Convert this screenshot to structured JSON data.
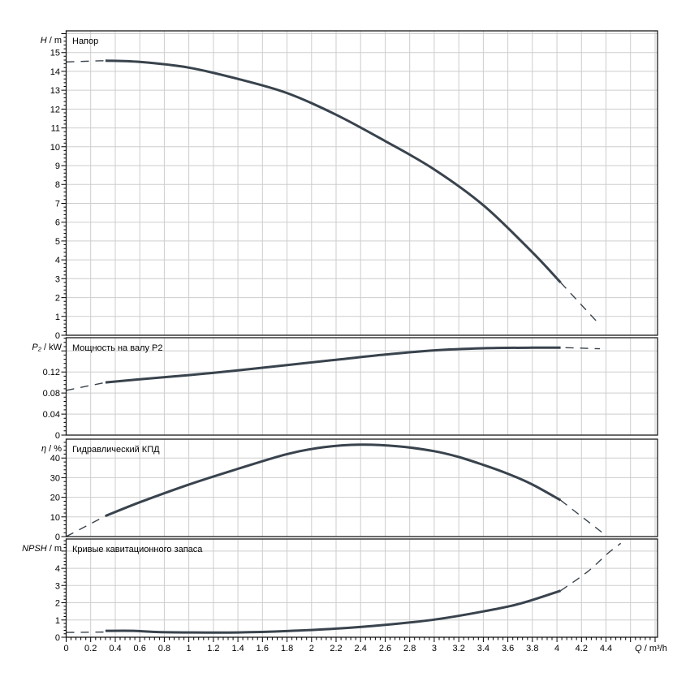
{
  "figure": {
    "background": "#ffffff",
    "curve_color": "#39434d",
    "grid_color": "#cdcdcd",
    "frame_color": "#1a1a1a",
    "text_color": "#000000"
  },
  "x_axis": {
    "label": "Q / m³/h",
    "min": 0,
    "max": 4.82,
    "major_step": 0.2,
    "minor_step": 0.04,
    "tick_labels": [
      "0",
      "0.2",
      "0.4",
      "0.6",
      "0.8",
      "1",
      "1.2",
      "1.4",
      "1.6",
      "1.8",
      "2",
      "2.2",
      "2.4",
      "2.6",
      "2.8",
      "3",
      "3.2",
      "3.4",
      "3.6",
      "3.8",
      "4",
      "4.2",
      "4.4"
    ]
  },
  "chart_data": [
    {
      "type": "line",
      "id": "head",
      "title": "Напор",
      "ylabel": "H / m",
      "ylim": [
        0,
        16.15
      ],
      "ymajor_step": 1,
      "yminor_step": 0.2,
      "ytick_labels": [
        "0",
        "1",
        "2",
        "3",
        "4",
        "5",
        "6",
        "7",
        "8",
        "9",
        "10",
        "11",
        "12",
        "13",
        "14",
        "15"
      ],
      "series": [
        {
          "name": "head-extrapolation-left",
          "style": "dashed",
          "points": [
            [
              0,
              14.5
            ],
            [
              0.32,
              14.57
            ]
          ]
        },
        {
          "name": "head-curve",
          "style": "solid",
          "points": [
            [
              0.32,
              14.57
            ],
            [
              0.6,
              14.5
            ],
            [
              1,
              14.2
            ],
            [
              1.4,
              13.6
            ],
            [
              1.8,
              12.85
            ],
            [
              2.2,
              11.7
            ],
            [
              2.6,
              10.3
            ],
            [
              3,
              8.8
            ],
            [
              3.4,
              6.9
            ],
            [
              3.8,
              4.4
            ],
            [
              4.03,
              2.8
            ]
          ]
        },
        {
          "name": "head-extrapolation-right",
          "style": "dashed",
          "points": [
            [
              4.03,
              2.8
            ],
            [
              4.35,
              0.55
            ]
          ]
        }
      ]
    },
    {
      "type": "line",
      "id": "power",
      "title": "Мощность на валу P2",
      "ylabel": "P₂ / kW",
      "ylim": [
        0,
        0.185
      ],
      "ymajor_step": 0.04,
      "yminor_step": 0.008,
      "ytick_labels": [
        "0",
        "0.04",
        "0.08",
        "0.12"
      ],
      "series": [
        {
          "name": "power-extrapolation-left",
          "style": "dashed",
          "points": [
            [
              0,
              0.085
            ],
            [
              0.32,
              0.1
            ]
          ]
        },
        {
          "name": "power-curve",
          "style": "solid",
          "points": [
            [
              0.32,
              0.1
            ],
            [
              0.6,
              0.106
            ],
            [
              1,
              0.114
            ],
            [
              1.4,
              0.123
            ],
            [
              1.8,
              0.133
            ],
            [
              2.2,
              0.143
            ],
            [
              2.6,
              0.153
            ],
            [
              3,
              0.161
            ],
            [
              3.4,
              0.165
            ],
            [
              3.8,
              0.166
            ],
            [
              4.03,
              0.166
            ]
          ]
        },
        {
          "name": "power-extrapolation-right",
          "style": "dashed",
          "points": [
            [
              4.07,
              0.166
            ],
            [
              4.35,
              0.164
            ]
          ]
        }
      ]
    },
    {
      "type": "line",
      "id": "efficiency",
      "title": "Гидравлический КПД",
      "ylabel": "η / %",
      "ylim": [
        0,
        49.6
      ],
      "ymajor_step": 10,
      "yminor_step": 2,
      "ytick_labels": [
        "0",
        "10",
        "20",
        "30",
        "40"
      ],
      "series": [
        {
          "name": "efficiency-extrapolation-left",
          "style": "dashed",
          "points": [
            [
              0,
              0
            ],
            [
              0.32,
              10.5
            ]
          ]
        },
        {
          "name": "efficiency-curve",
          "style": "solid",
          "points": [
            [
              0.32,
              10.5
            ],
            [
              0.6,
              17.5
            ],
            [
              1,
              26.5
            ],
            [
              1.4,
              34.5
            ],
            [
              1.8,
              42
            ],
            [
              2.1,
              45.5
            ],
            [
              2.4,
              46.8
            ],
            [
              2.7,
              46
            ],
            [
              3,
              43.5
            ],
            [
              3.2,
              40.5
            ],
            [
              3.4,
              36.5
            ],
            [
              3.6,
              32
            ],
            [
              3.8,
              26.5
            ],
            [
              4.03,
              18.5
            ]
          ]
        },
        {
          "name": "efficiency-extrapolation-right",
          "style": "dashed",
          "points": [
            [
              4.03,
              18.5
            ],
            [
              4.37,
              2
            ]
          ]
        }
      ]
    },
    {
      "type": "line",
      "id": "npsh",
      "title": "Кривые кавитационного запаса",
      "ylabel": "NPSH / m",
      "ylim": [
        0,
        5.7
      ],
      "ymajor_step": 1,
      "yminor_step": 0.2,
      "ytick_labels": [
        "0",
        "1",
        "2",
        "3",
        "4"
      ],
      "series": [
        {
          "name": "npsh-extrapolation-left",
          "style": "dashed",
          "points": [
            [
              0,
              0.28
            ],
            [
              0.32,
              0.3
            ]
          ]
        },
        {
          "name": "npsh-curve",
          "style": "solid",
          "points": [
            [
              0.32,
              0.37
            ],
            [
              0.55,
              0.37
            ],
            [
              0.75,
              0.3
            ],
            [
              1,
              0.28
            ],
            [
              1.4,
              0.28
            ],
            [
              1.8,
              0.36
            ],
            [
              2.2,
              0.5
            ],
            [
              2.6,
              0.72
            ],
            [
              3,
              1.02
            ],
            [
              3.4,
              1.5
            ],
            [
              3.7,
              1.95
            ],
            [
              4.03,
              2.7
            ]
          ]
        },
        {
          "name": "npsh-extrapolation-right",
          "style": "dashed",
          "points": [
            [
              4.03,
              2.7
            ],
            [
              4.25,
              3.8
            ],
            [
              4.42,
              4.9
            ],
            [
              4.52,
              5.45
            ]
          ]
        }
      ]
    }
  ]
}
